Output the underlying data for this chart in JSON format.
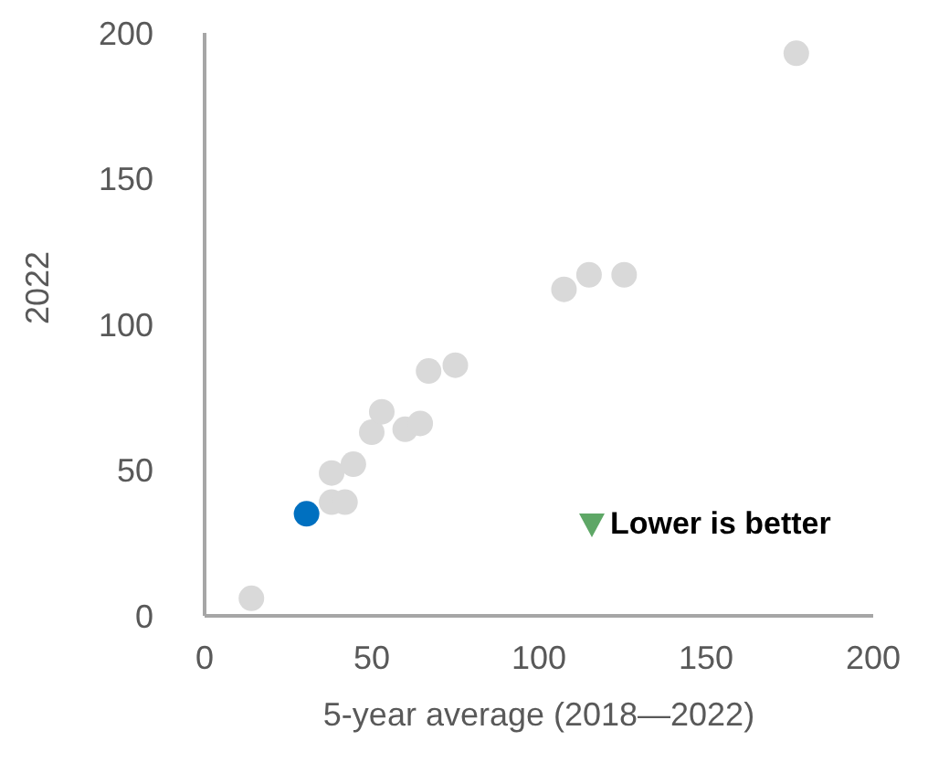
{
  "chart_data": {
    "type": "scatter",
    "xlabel": "5-year average (2018—2022)",
    "ylabel": "2022",
    "x": [
      14,
      30.5,
      38,
      42,
      38,
      44.5,
      50,
      53,
      60,
      64.5,
      67,
      75,
      107.5,
      115,
      125.5,
      177
    ],
    "values": [
      6,
      35,
      39,
      39,
      49,
      52,
      63,
      70,
      64,
      66,
      84,
      86,
      112,
      117,
      117,
      193
    ],
    "colors": [
      "#d9d9d9",
      "#0070c0",
      "#d9d9d9",
      "#d9d9d9",
      "#d9d9d9",
      "#d9d9d9",
      "#d9d9d9",
      "#d9d9d9",
      "#d9d9d9",
      "#d9d9d9",
      "#d9d9d9",
      "#d9d9d9",
      "#d9d9d9",
      "#d9d9d9",
      "#d9d9d9",
      "#d9d9d9"
    ],
    "xlim": [
      0,
      200
    ],
    "xticks": [
      0,
      50,
      100,
      150,
      200
    ],
    "ylim": [
      0,
      200
    ],
    "yticks": [
      0,
      50,
      100,
      150,
      200
    ],
    "annotations": [
      "Lower is better"
    ],
    "marker": "circle",
    "grid": false,
    "legend": false
  }
}
